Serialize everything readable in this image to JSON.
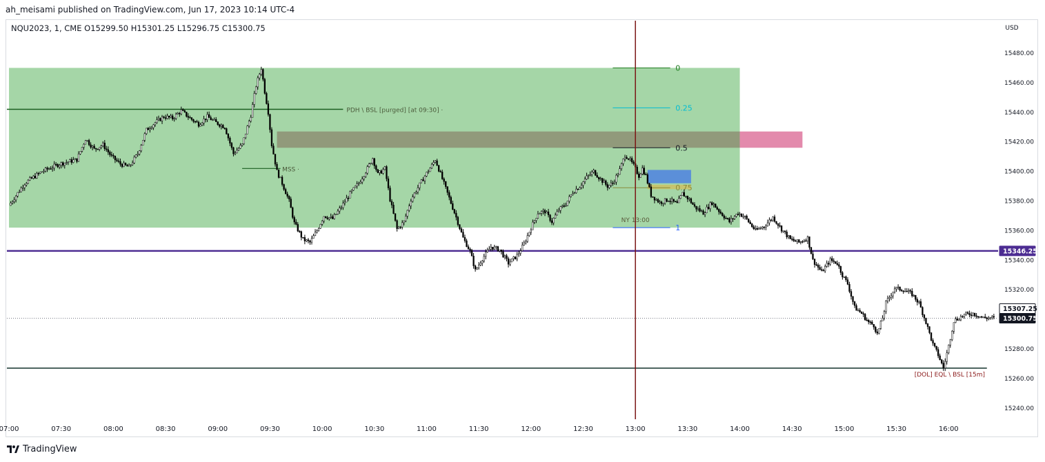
{
  "header": {
    "publisher_line": "ah_meisami published on TradingView.com, Jun 17, 2023 10:14 UTC-4"
  },
  "chart_data": {
    "type": "candlestick",
    "title": "NQU2023, 1, CME",
    "ohlc_line": {
      "symbol": "NQU2023, 1, CME",
      "open": "O15299.50",
      "high": "H15301.25",
      "low": "L15296.75",
      "close": "C15300.75"
    },
    "currency": "USD",
    "ylim": [
      15230,
      15492
    ],
    "y_ticks": [
      "15480.00",
      "15460.00",
      "15440.00",
      "15420.00",
      "15400.00",
      "15380.00",
      "15360.00",
      "15340.00",
      "15320.00",
      "15300.00",
      "15280.00",
      "15260.00",
      "15240.00"
    ],
    "y_tick_values": [
      15480,
      15460,
      15440,
      15420,
      15400,
      15380,
      15360,
      15340,
      15320,
      15300,
      15280,
      15260,
      15240
    ],
    "x_ticks": [
      "07:00",
      "07:30",
      "08:00",
      "08:30",
      "09:00",
      "09:30",
      "10:00",
      "10:30",
      "11:00",
      "11:30",
      "12:00",
      "12:30",
      "13:00",
      "13:30",
      "14:00",
      "14:30",
      "15:00",
      "15:30",
      "16:00"
    ],
    "x_tick_minutes": [
      420,
      450,
      480,
      510,
      540,
      570,
      600,
      630,
      660,
      690,
      720,
      750,
      780,
      810,
      840,
      870,
      900,
      930,
      960
    ],
    "x_range_minutes": [
      420,
      988
    ],
    "price_path": [
      [
        421,
        15377
      ],
      [
        430,
        15392
      ],
      [
        440,
        15400
      ],
      [
        450,
        15405
      ],
      [
        460,
        15408
      ],
      [
        465,
        15422
      ],
      [
        470,
        15415
      ],
      [
        475,
        15418
      ],
      [
        480,
        15410
      ],
      [
        485,
        15405
      ],
      [
        490,
        15403
      ],
      [
        495,
        15412
      ],
      [
        500,
        15428
      ],
      [
        505,
        15433
      ],
      [
        510,
        15437
      ],
      [
        515,
        15436
      ],
      [
        520,
        15441
      ],
      [
        525,
        15436
      ],
      [
        530,
        15432
      ],
      [
        535,
        15437
      ],
      [
        540,
        15433
      ],
      [
        545,
        15430
      ],
      [
        550,
        15412
      ],
      [
        555,
        15418
      ],
      [
        560,
        15438
      ],
      [
        563,
        15458
      ],
      [
        566,
        15470
      ],
      [
        568,
        15454
      ],
      [
        570,
        15440
      ],
      [
        572,
        15418
      ],
      [
        575,
        15400
      ],
      [
        578,
        15392
      ],
      [
        582,
        15380
      ],
      [
        585,
        15365
      ],
      [
        590,
        15354
      ],
      [
        594,
        15352
      ],
      [
        598,
        15360
      ],
      [
        602,
        15370
      ],
      [
        607,
        15368
      ],
      [
        612,
        15376
      ],
      [
        617,
        15385
      ],
      [
        622,
        15392
      ],
      [
        627,
        15402
      ],
      [
        630,
        15409
      ],
      [
        633,
        15398
      ],
      [
        637,
        15402
      ],
      [
        640,
        15381
      ],
      [
        644,
        15361
      ],
      [
        648,
        15366
      ],
      [
        652,
        15381
      ],
      [
        656,
        15389
      ],
      [
        660,
        15397
      ],
      [
        664,
        15404
      ],
      [
        666,
        15408
      ],
      [
        670,
        15395
      ],
      [
        674,
        15382
      ],
      [
        678,
        15369
      ],
      [
        682,
        15355
      ],
      [
        686,
        15346
      ],
      [
        689,
        15333
      ],
      [
        693,
        15341
      ],
      [
        698,
        15349
      ],
      [
        703,
        15347
      ],
      [
        708,
        15338
      ],
      [
        713,
        15343
      ],
      [
        717,
        15351
      ],
      [
        721,
        15362
      ],
      [
        725,
        15372
      ],
      [
        729,
        15373
      ],
      [
        733,
        15366
      ],
      [
        737,
        15374
      ],
      [
        741,
        15378
      ],
      [
        745,
        15386
      ],
      [
        749,
        15390
      ],
      [
        753,
        15396
      ],
      [
        757,
        15400
      ],
      [
        760,
        15396
      ],
      [
        765,
        15390
      ],
      [
        768,
        15392
      ],
      [
        772,
        15401
      ],
      [
        775,
        15411
      ],
      [
        777,
        15409
      ],
      [
        780,
        15404
      ],
      [
        783,
        15397
      ],
      [
        785,
        15402
      ],
      [
        787,
        15397
      ],
      [
        790,
        15384
      ],
      [
        795,
        15379
      ],
      [
        800,
        15381
      ],
      [
        805,
        15378
      ],
      [
        808,
        15385
      ],
      [
        812,
        15381
      ],
      [
        815,
        15376
      ],
      [
        820,
        15372
      ],
      [
        825,
        15379
      ],
      [
        830,
        15372
      ],
      [
        835,
        15366
      ],
      [
        840,
        15372
      ],
      [
        844,
        15369
      ],
      [
        850,
        15360
      ],
      [
        855,
        15363
      ],
      [
        860,
        15369
      ],
      [
        865,
        15361
      ],
      [
        870,
        15354
      ],
      [
        875,
        15352
      ],
      [
        880,
        15355
      ],
      [
        883,
        15340
      ],
      [
        888,
        15332
      ],
      [
        893,
        15340
      ],
      [
        897,
        15338
      ],
      [
        900,
        15330
      ],
      [
        903,
        15324
      ],
      [
        907,
        15308
      ],
      [
        911,
        15304
      ],
      [
        915,
        15298
      ],
      [
        918,
        15296
      ],
      [
        920,
        15290
      ],
      [
        923,
        15301
      ],
      [
        925,
        15311
      ],
      [
        928,
        15317
      ],
      [
        930,
        15321
      ],
      [
        935,
        15320
      ],
      [
        940,
        15317
      ],
      [
        944,
        15311
      ],
      [
        948,
        15298
      ],
      [
        952,
        15283
      ],
      [
        955,
        15276
      ],
      [
        958,
        15267
      ],
      [
        961,
        15282
      ],
      [
        964,
        15299
      ],
      [
        970,
        15303
      ],
      [
        975,
        15304
      ],
      [
        981,
        15301
      ],
      [
        986,
        15301
      ]
    ],
    "horizontal_lines": [
      {
        "label": "",
        "price": 15346.25,
        "color": "#4c2c92",
        "price_tag": "15346.25"
      },
      {
        "label": "",
        "price": 15300.75,
        "color": "#131722",
        "price_tag": "15300.75",
        "style": "dotted"
      },
      {
        "label": "",
        "price": 15307.25,
        "color": "#ffffff",
        "price_tag": "15307.25"
      }
    ],
    "levels": [
      {
        "label": "PDH \\ BSL [purged] [at 09:30] ·",
        "price": 15442
      },
      {
        "label": "MSS ·",
        "price": 15402
      },
      {
        "label": "[DOL]  EQL \\ BSL  [15m]",
        "price": 15267
      }
    ],
    "fib_levels": [
      {
        "label": "0",
        "price": 15470,
        "color": "#1e7b1e"
      },
      {
        "label": "0.25",
        "price": 15443,
        "color": "#00bcd4"
      },
      {
        "label": "0.5",
        "price": 15416,
        "color": "#131722"
      },
      {
        "label": "0.75",
        "price": 15389,
        "color": "#8a8a3a"
      },
      {
        "label": "1",
        "price": 15362,
        "color": "#2962ff"
      }
    ],
    "annotations": {
      "vertical_line_time": "13:00",
      "vertical_line_label": "NY 13:00"
    },
    "colors": {
      "green_zone": "#a5d6a7",
      "brown_zone": "#8d8f73",
      "pink_zone": "#e38aac",
      "blue_zone": "#5b8fd9",
      "olive_zone": "#c7c46e",
      "purple_line": "#4c2c92",
      "dark_green_line": "#1b5e20",
      "maroon_vline": "#7a1414"
    }
  },
  "footer": {
    "brand": "TradingView"
  }
}
